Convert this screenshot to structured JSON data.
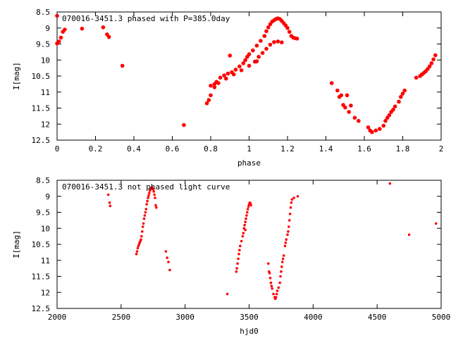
{
  "chart_data": [
    {
      "type": "scatter",
      "title": "070016-3451.3 phased with P=385.0day",
      "xlabel": "phase",
      "ylabel": "I[mag]",
      "xlim": [
        0,
        2
      ],
      "ylim": [
        12.5,
        8.5
      ],
      "y_inverted": true,
      "x_ticks": [
        "0",
        "0.2",
        "0.4",
        "0.6",
        "0.8",
        "1",
        "1.2",
        "1.4",
        "1.6",
        "1.8",
        "2"
      ],
      "y_ticks": [
        "8.5",
        "9",
        "9.5",
        "10",
        "10.5",
        "11",
        "11.5",
        "12",
        "12.5"
      ],
      "grid": false,
      "marker_color": "#ff0000",
      "series": [
        {
          "points": [
            [
              0.0,
              9.48
            ],
            [
              0.01,
              9.42
            ],
            [
              0.0,
              8.62
            ],
            [
              0.02,
              9.3
            ],
            [
              0.03,
              9.12
            ],
            [
              0.04,
              9.05
            ],
            [
              0.13,
              9.02
            ],
            [
              0.24,
              8.98
            ],
            [
              0.26,
              9.2
            ],
            [
              0.27,
              9.28
            ],
            [
              0.34,
              10.18
            ],
            [
              0.66,
              12.03
            ],
            [
              0.78,
              11.35
            ],
            [
              0.79,
              11.25
            ],
            [
              0.8,
              11.1
            ],
            [
              0.8,
              10.8
            ],
            [
              0.82,
              10.75
            ],
            [
              0.83,
              10.68
            ],
            [
              0.85,
              10.55
            ],
            [
              0.87,
              10.48
            ],
            [
              0.89,
              10.42
            ],
            [
              0.9,
              9.86
            ],
            [
              0.91,
              10.38
            ],
            [
              0.93,
              10.3
            ],
            [
              0.95,
              10.2
            ],
            [
              0.97,
              10.1
            ],
            [
              0.98,
              10.0
            ],
            [
              0.99,
              9.9
            ],
            [
              1.0,
              9.82
            ],
            [
              1.02,
              9.7
            ],
            [
              1.04,
              9.55
            ],
            [
              1.06,
              9.4
            ],
            [
              1.08,
              9.25
            ],
            [
              1.09,
              9.1
            ],
            [
              1.1,
              8.98
            ],
            [
              1.11,
              8.88
            ],
            [
              1.12,
              8.8
            ],
            [
              1.13,
              8.76
            ],
            [
              1.14,
              8.72
            ],
            [
              1.15,
              8.7
            ],
            [
              1.16,
              8.72
            ],
            [
              1.17,
              8.78
            ],
            [
              1.18,
              8.85
            ],
            [
              1.19,
              8.92
            ],
            [
              1.2,
              9.0
            ],
            [
              1.21,
              9.12
            ],
            [
              1.22,
              9.25
            ],
            [
              1.23,
              9.3
            ],
            [
              1.24,
              9.32
            ],
            [
              1.25,
              9.33
            ],
            [
              0.82,
              10.85
            ],
            [
              0.84,
              10.72
            ],
            [
              0.88,
              10.58
            ],
            [
              0.92,
              10.45
            ],
            [
              0.96,
              10.32
            ],
            [
              1.0,
              10.18
            ],
            [
              1.03,
              10.05
            ],
            [
              1.05,
              9.9
            ],
            [
              1.07,
              9.78
            ],
            [
              1.09,
              9.65
            ],
            [
              1.11,
              9.52
            ],
            [
              1.13,
              9.44
            ],
            [
              1.15,
              9.42
            ],
            [
              1.17,
              9.45
            ],
            [
              1.04,
              10.04
            ],
            [
              1.43,
              10.72
            ],
            [
              1.46,
              10.95
            ],
            [
              1.47,
              11.15
            ],
            [
              1.48,
              11.1
            ],
            [
              1.49,
              11.4
            ],
            [
              1.5,
              11.48
            ],
            [
              1.51,
              11.1
            ],
            [
              1.52,
              11.62
            ],
            [
              1.53,
              11.42
            ],
            [
              1.55,
              11.8
            ],
            [
              1.57,
              11.9
            ],
            [
              1.62,
              12.1
            ],
            [
              1.63,
              12.2
            ],
            [
              1.64,
              12.25
            ],
            [
              1.66,
              12.2
            ],
            [
              1.68,
              12.15
            ],
            [
              1.7,
              12.05
            ],
            [
              1.71,
              11.9
            ],
            [
              1.72,
              11.8
            ],
            [
              1.73,
              11.72
            ],
            [
              1.74,
              11.62
            ],
            [
              1.75,
              11.55
            ],
            [
              1.76,
              11.45
            ],
            [
              1.78,
              11.3
            ],
            [
              1.79,
              11.15
            ],
            [
              1.8,
              11.05
            ],
            [
              1.81,
              10.95
            ],
            [
              1.87,
              10.55
            ],
            [
              1.89,
              10.5
            ],
            [
              1.9,
              10.45
            ],
            [
              1.91,
              10.4
            ],
            [
              1.92,
              10.35
            ],
            [
              1.93,
              10.28
            ],
            [
              1.94,
              10.2
            ],
            [
              1.95,
              10.1
            ],
            [
              1.96,
              9.98
            ],
            [
              1.97,
              9.85
            ]
          ]
        }
      ]
    },
    {
      "type": "scatter",
      "title": "070016-3451.3 not phased light curve",
      "xlabel": "hjd0",
      "ylabel": "I[mag]",
      "xlim": [
        2000,
        5000
      ],
      "ylim": [
        12.5,
        8.5
      ],
      "y_inverted": true,
      "x_ticks": [
        "2000",
        "2500",
        "3000",
        "3500",
        "4000",
        "4500",
        "5000"
      ],
      "y_ticks": [
        "8.5",
        "9",
        "9.5",
        "10",
        "10.5",
        "11",
        "11.5",
        "12",
        "12.5"
      ],
      "grid": false,
      "marker_color": "#ff0000",
      "series": [
        {
          "points": [
            [
              2400,
              8.95
            ],
            [
              2410,
              9.2
            ],
            [
              2415,
              9.3
            ],
            [
              2620,
              10.8
            ],
            [
              2625,
              10.72
            ],
            [
              2630,
              10.62
            ],
            [
              2635,
              10.55
            ],
            [
              2640,
              10.5
            ],
            [
              2645,
              10.45
            ],
            [
              2650,
              10.4
            ],
            [
              2655,
              10.35
            ],
            [
              2660,
              10.25
            ],
            [
              2665,
              10.1
            ],
            [
              2670,
              9.95
            ],
            [
              2675,
              9.85
            ],
            [
              2680,
              9.7
            ],
            [
              2685,
              9.6
            ],
            [
              2690,
              9.5
            ],
            [
              2695,
              9.4
            ],
            [
              2700,
              9.25
            ],
            [
              2705,
              9.15
            ],
            [
              2710,
              9.05
            ],
            [
              2715,
              8.98
            ],
            [
              2720,
              8.9
            ],
            [
              2725,
              8.82
            ],
            [
              2730,
              8.78
            ],
            [
              2735,
              8.75
            ],
            [
              2740,
              8.72
            ],
            [
              2745,
              8.74
            ],
            [
              2750,
              8.78
            ],
            [
              2755,
              8.85
            ],
            [
              2760,
              8.95
            ],
            [
              2765,
              9.05
            ],
            [
              2770,
              9.28
            ],
            [
              2775,
              9.35
            ],
            [
              2850,
              10.72
            ],
            [
              2860,
              10.92
            ],
            [
              2870,
              11.05
            ],
            [
              2880,
              11.3
            ],
            [
              3330,
              12.05
            ],
            [
              3400,
              11.35
            ],
            [
              3405,
              11.25
            ],
            [
              3410,
              11.1
            ],
            [
              3415,
              10.95
            ],
            [
              3420,
              10.8
            ],
            [
              3425,
              10.68
            ],
            [
              3430,
              10.55
            ],
            [
              3440,
              10.4
            ],
            [
              3450,
              10.25
            ],
            [
              3455,
              10.15
            ],
            [
              3460,
              10.0
            ],
            [
              3465,
              9.9
            ],
            [
              3470,
              9.8
            ],
            [
              3475,
              9.7
            ],
            [
              3480,
              9.6
            ],
            [
              3485,
              9.5
            ],
            [
              3490,
              9.4
            ],
            [
              3495,
              9.32
            ],
            [
              3500,
              9.25
            ],
            [
              3505,
              9.2
            ],
            [
              3510,
              9.22
            ],
            [
              3515,
              9.28
            ],
            [
              3470,
              10.05
            ],
            [
              3650,
              11.1
            ],
            [
              3655,
              11.35
            ],
            [
              3660,
              11.4
            ],
            [
              3665,
              11.55
            ],
            [
              3670,
              11.7
            ],
            [
              3675,
              11.8
            ],
            [
              3680,
              11.88
            ],
            [
              3690,
              12.05
            ],
            [
              3700,
              12.15
            ],
            [
              3705,
              12.2
            ],
            [
              3710,
              12.15
            ],
            [
              3715,
              12.05
            ],
            [
              3720,
              11.95
            ],
            [
              3730,
              11.85
            ],
            [
              3740,
              11.7
            ],
            [
              3745,
              11.5
            ],
            [
              3750,
              11.35
            ],
            [
              3755,
              11.2
            ],
            [
              3760,
              11.05
            ],
            [
              3765,
              10.95
            ],
            [
              3770,
              10.85
            ],
            [
              3780,
              10.55
            ],
            [
              3785,
              10.45
            ],
            [
              3790,
              10.35
            ],
            [
              3800,
              10.2
            ],
            [
              3805,
              10.1
            ],
            [
              3810,
              9.95
            ],
            [
              3815,
              9.75
            ],
            [
              3820,
              9.55
            ],
            [
              3825,
              9.35
            ],
            [
              3830,
              9.2
            ],
            [
              3835,
              9.1
            ],
            [
              3850,
              9.05
            ],
            [
              3880,
              9.0
            ],
            [
              4600,
              8.6
            ],
            [
              4750,
              10.2
            ],
            [
              4960,
              9.85
            ]
          ]
        }
      ]
    }
  ]
}
